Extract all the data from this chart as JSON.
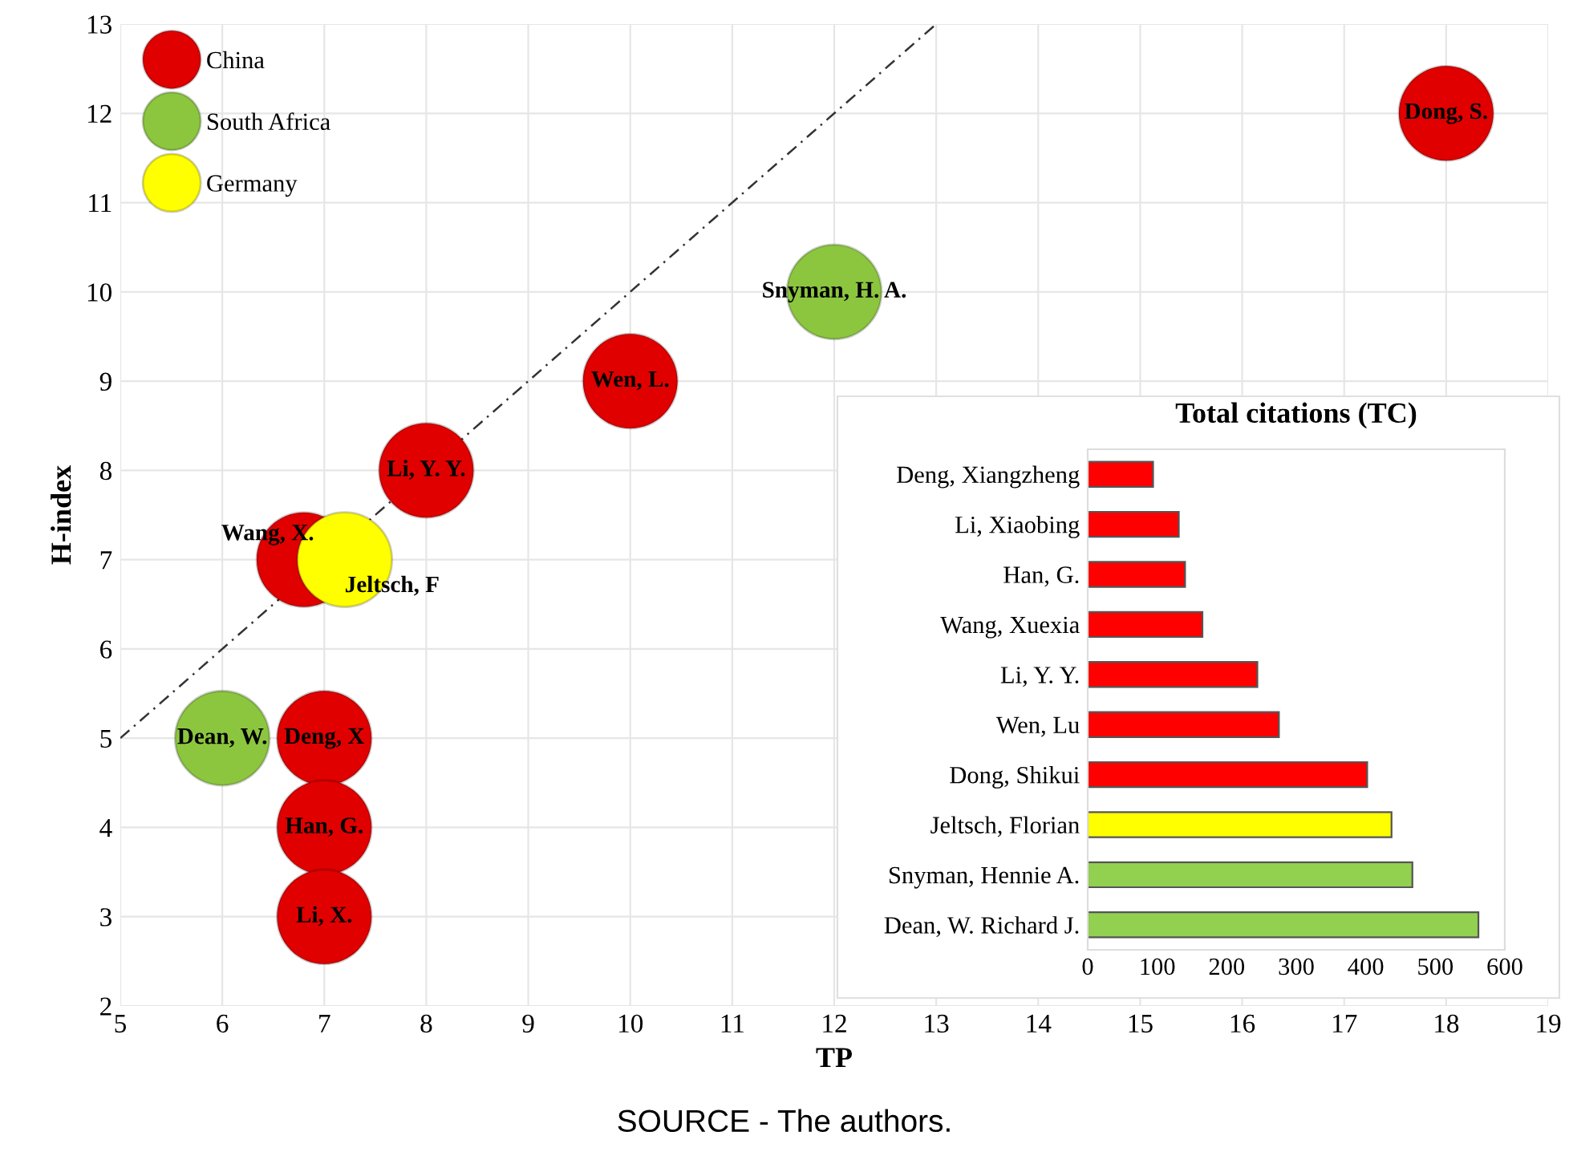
{
  "chart_data": [
    {
      "type": "scatter",
      "xlabel": "TP",
      "ylabel": "H-index",
      "xlim": [
        5,
        19
      ],
      "ylim": [
        2,
        13
      ],
      "xticks": [
        5,
        6,
        7,
        8,
        9,
        10,
        11,
        12,
        13,
        14,
        15,
        16,
        17,
        18,
        19
      ],
      "yticks": [
        2,
        3,
        4,
        5,
        6,
        7,
        8,
        9,
        10,
        11,
        12,
        13
      ],
      "grid": true,
      "legend": "top left",
      "marker": "circle",
      "series": [
        {
          "name": "China",
          "color": "#e00000",
          "x": [
            18,
            10,
            8,
            6.8,
            7,
            7,
            7
          ],
          "values": [
            12,
            9,
            8,
            7,
            5,
            4,
            3
          ]
        },
        {
          "name": "South Africa",
          "color": "#8cc63f",
          "x": [
            12,
            6
          ],
          "values": [
            10,
            5
          ]
        },
        {
          "name": "Germany",
          "color": "#ffff00",
          "x": [
            7.2
          ],
          "values": [
            7
          ]
        },
        {
          "type": "line",
          "color": "#333333",
          "line_style": "dashed",
          "marker": "none",
          "x": [
            5,
            13
          ],
          "values": [
            5,
            13
          ]
        }
      ],
      "annotations": [
        {
          "text": "Dong, S.",
          "x": 18,
          "y": 12
        },
        {
          "text": "Wen, L.",
          "x": 10,
          "y": 9
        },
        {
          "text": "Li, Y. Y.",
          "x": 8,
          "y": 8
        },
        {
          "text": "Wang, X.",
          "x": 6.8,
          "y": 7
        },
        {
          "text": "Deng, X",
          "x": 7,
          "y": 5
        },
        {
          "text": "Han, G.",
          "x": 7,
          "y": 4
        },
        {
          "text": "Li, X.",
          "x": 7,
          "y": 3
        },
        {
          "text": "Snyman, H. A.",
          "x": 12,
          "y": 10
        },
        {
          "text": "Dean, W.",
          "x": 6,
          "y": 5
        },
        {
          "text": "Jeltsch, F",
          "x": 7.2,
          "y": 7
        },
        "SOURCE - The authors."
      ]
    },
    {
      "type": "bar",
      "orientation": "horizontal",
      "title": "Total citations (TC)",
      "categories": [
        "Deng, Xiangzheng",
        "Li, Xiaobing",
        "Han, G.",
        "Wang, Xuexia",
        "Li, Y. Y.",
        "Wen, Lu",
        "Dong, Shikui",
        "Jeltsch, Florian",
        "Snyman, Hennie A.",
        "Dean, W. Richard J."
      ],
      "values": [
        94,
        131,
        140,
        165,
        244,
        275,
        402,
        437,
        467,
        562
      ],
      "colors": [
        "#ff0000",
        "#ff0000",
        "#ff0000",
        "#ff0000",
        "#ff0000",
        "#ff0000",
        "#ff0000",
        "#ffff00",
        "#92d050",
        "#92d050"
      ],
      "xlim": [
        0,
        600
      ],
      "xticks": [
        0,
        100,
        200,
        300,
        400,
        500,
        600
      ],
      "grid": false
    }
  ]
}
